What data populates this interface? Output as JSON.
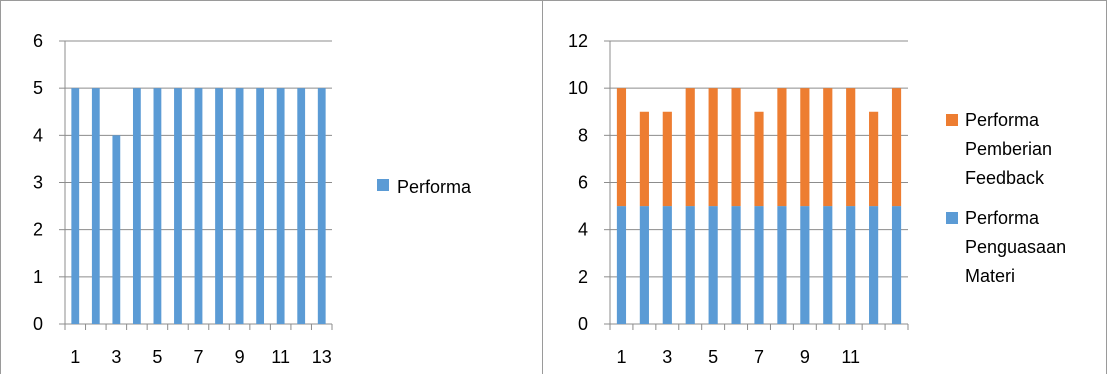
{
  "chart_data": [
    {
      "type": "bar",
      "categories": [
        "1",
        "2",
        "3",
        "4",
        "5",
        "6",
        "7",
        "8",
        "9",
        "10",
        "11",
        "12",
        "13"
      ],
      "x_tick_labels": [
        "1",
        "3",
        "5",
        "7",
        "9",
        "11",
        "13"
      ],
      "y_tick_labels": [
        "0",
        "1",
        "2",
        "3",
        "4",
        "5",
        "6"
      ],
      "series": [
        {
          "name": "Performa",
          "color": "#5b9bd5",
          "values": [
            5,
            5,
            4,
            5,
            5,
            5,
            5,
            5,
            5,
            5,
            5,
            5,
            5
          ]
        }
      ],
      "ylim": [
        0,
        6
      ],
      "grid": true,
      "legend_position": "right"
    },
    {
      "type": "bar",
      "stacked": true,
      "categories": [
        "1",
        "2",
        "3",
        "4",
        "5",
        "6",
        "7",
        "8",
        "9",
        "10",
        "11",
        "12",
        "13"
      ],
      "x_tick_labels": [
        "1",
        "3",
        "5",
        "7",
        "9",
        "11"
      ],
      "y_tick_labels": [
        "0",
        "2",
        "4",
        "6",
        "8",
        "10",
        "12"
      ],
      "series": [
        {
          "name": "Performa Penguasaan Materi",
          "color": "#5b9bd5",
          "values": [
            5,
            5,
            5,
            5,
            5,
            5,
            5,
            5,
            5,
            5,
            5,
            5,
            5
          ]
        },
        {
          "name": "Performa Pemberian Feedback",
          "color": "#ed7d31",
          "values": [
            5,
            4,
            4,
            5,
            5,
            5,
            4,
            5,
            5,
            5,
            5,
            4,
            5
          ]
        }
      ],
      "ylim": [
        0,
        12
      ],
      "grid": true,
      "legend_position": "right"
    }
  ]
}
